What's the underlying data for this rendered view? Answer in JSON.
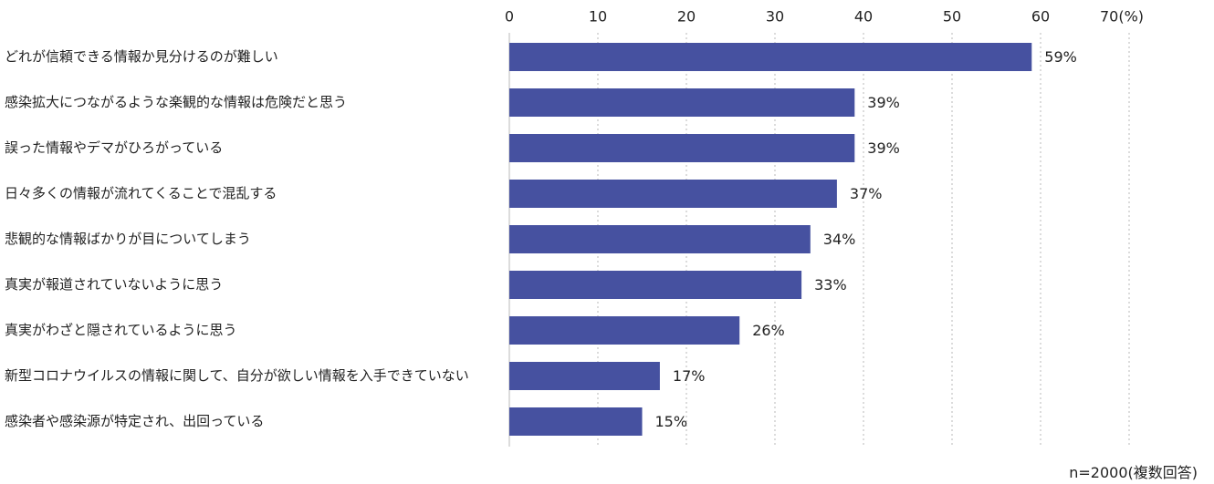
{
  "chart_data": {
    "type": "bar",
    "orientation": "horizontal",
    "categories": [
      "どれが信頼できる情報か見分けるのが難しい",
      "感染拡大につながるような楽観的な情報は危険だと思う",
      "誤った情報やデマがひろがっている",
      "日々多くの情報が流れてくることで混乱する",
      "悲観的な情報ばかりが目についてしまう",
      "真実が報道されていないように思う",
      "真実がわざと隠されているように思う",
      "新型コロナウイルスの情報に関して、自分が欲しい情報を入手できていない",
      "感染者や感染源が特定され、出回っている"
    ],
    "values": [
      59,
      39,
      39,
      37,
      34,
      33,
      26,
      17,
      15
    ],
    "value_labels": [
      "59%",
      "39%",
      "39%",
      "37%",
      "34%",
      "33%",
      "26%",
      "17%",
      "15%"
    ],
    "x_ticks": [
      "0",
      "10",
      "20",
      "30",
      "40",
      "50",
      "60",
      "70(%)"
    ],
    "xlim": [
      0,
      70
    ],
    "grid": true,
    "bar_color": "#4651a0",
    "grid_color": "#b8b8b8",
    "note": "n=2000(複数回答)"
  }
}
